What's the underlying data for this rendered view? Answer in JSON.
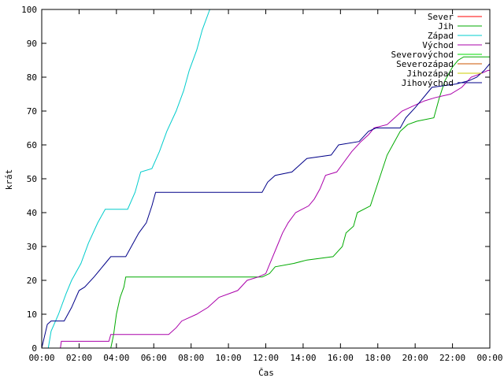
{
  "chart_data": {
    "type": "line",
    "title": "",
    "xlabel": "Čas",
    "ylabel": "krát",
    "xlim": [
      0,
      24
    ],
    "ylim": [
      0,
      100
    ],
    "grid": false,
    "legend_position": "top-right",
    "x_ticks": [
      {
        "value": 0,
        "label": "00:00"
      },
      {
        "value": 2,
        "label": "02:00"
      },
      {
        "value": 4,
        "label": "04:00"
      },
      {
        "value": 6,
        "label": "06:00"
      },
      {
        "value": 8,
        "label": "08:00"
      },
      {
        "value": 10,
        "label": "10:00"
      },
      {
        "value": 12,
        "label": "12:00"
      },
      {
        "value": 14,
        "label": "14:00"
      },
      {
        "value": 16,
        "label": "16:00"
      },
      {
        "value": 18,
        "label": "18:00"
      },
      {
        "value": 20,
        "label": "20:00"
      },
      {
        "value": 22,
        "label": "22:00"
      },
      {
        "value": 24,
        "label": "00:00"
      }
    ],
    "y_ticks": [
      0,
      10,
      20,
      30,
      40,
      50,
      60,
      70,
      80,
      90,
      100
    ],
    "series": [
      {
        "name": "Sever",
        "color": "#ff0000",
        "points": []
      },
      {
        "name": "Jih",
        "color": "#00aa00",
        "points": [
          [
            2.55,
            0
          ],
          [
            3.7,
            0
          ],
          [
            3.85,
            4
          ],
          [
            4.0,
            10
          ],
          [
            4.2,
            15
          ],
          [
            4.4,
            18
          ],
          [
            4.5,
            21
          ],
          [
            11.8,
            21
          ],
          [
            12.2,
            22
          ],
          [
            12.5,
            24
          ],
          [
            13.5,
            25
          ],
          [
            14.2,
            26
          ],
          [
            15.6,
            27
          ],
          [
            16.1,
            30
          ],
          [
            16.3,
            34
          ],
          [
            16.7,
            36
          ],
          [
            16.9,
            40
          ],
          [
            17.6,
            42
          ],
          [
            17.9,
            47
          ],
          [
            18.2,
            52
          ],
          [
            18.5,
            57
          ],
          [
            18.8,
            60
          ],
          [
            19.2,
            64
          ],
          [
            19.6,
            66
          ],
          [
            20.1,
            67
          ],
          [
            21.0,
            68
          ],
          [
            21.3,
            74
          ],
          [
            21.6,
            79
          ],
          [
            22.0,
            83
          ],
          [
            22.3,
            85
          ],
          [
            22.6,
            86
          ],
          [
            24.0,
            86
          ]
        ]
      },
      {
        "name": "Západ",
        "color": "#00cccc",
        "points": [
          [
            0.35,
            0
          ],
          [
            0.5,
            5
          ],
          [
            0.9,
            10
          ],
          [
            1.3,
            16
          ],
          [
            1.6,
            20
          ],
          [
            2.1,
            25
          ],
          [
            2.5,
            31
          ],
          [
            3.0,
            37
          ],
          [
            3.4,
            41
          ],
          [
            4.6,
            41
          ],
          [
            5.0,
            46
          ],
          [
            5.3,
            52
          ],
          [
            5.9,
            53
          ],
          [
            6.3,
            58
          ],
          [
            6.7,
            64
          ],
          [
            7.2,
            70
          ],
          [
            7.6,
            76
          ],
          [
            7.9,
            82
          ],
          [
            8.3,
            88
          ],
          [
            8.6,
            94
          ],
          [
            9.0,
            100
          ]
        ]
      },
      {
        "name": "Východ",
        "color": "#aa00aa",
        "points": [
          [
            1.0,
            0
          ],
          [
            1.05,
            2
          ],
          [
            3.6,
            2
          ],
          [
            3.7,
            4
          ],
          [
            6.8,
            4
          ],
          [
            7.2,
            6
          ],
          [
            7.5,
            8
          ],
          [
            8.3,
            10
          ],
          [
            8.9,
            12
          ],
          [
            9.5,
            15
          ],
          [
            10.5,
            17
          ],
          [
            11.0,
            20
          ],
          [
            11.6,
            21
          ],
          [
            12.0,
            22
          ],
          [
            12.3,
            26
          ],
          [
            12.6,
            30
          ],
          [
            12.9,
            34
          ],
          [
            13.2,
            37
          ],
          [
            13.6,
            40
          ],
          [
            14.3,
            42
          ],
          [
            14.6,
            44
          ],
          [
            14.9,
            47
          ],
          [
            15.2,
            51
          ],
          [
            15.8,
            52
          ],
          [
            16.2,
            55
          ],
          [
            16.6,
            58
          ],
          [
            17.1,
            61
          ],
          [
            17.5,
            63
          ],
          [
            17.8,
            65
          ],
          [
            18.5,
            66
          ],
          [
            18.9,
            68
          ],
          [
            19.3,
            70
          ],
          [
            19.7,
            71
          ],
          [
            20.5,
            73
          ],
          [
            21.1,
            74
          ],
          [
            21.9,
            75
          ],
          [
            22.5,
            77
          ],
          [
            23.0,
            80
          ],
          [
            23.5,
            81
          ],
          [
            23.9,
            82
          ],
          [
            24.0,
            82
          ]
        ]
      },
      {
        "name": "Severovýchod",
        "color": "#00dd00",
        "points": []
      },
      {
        "name": "Severozápad",
        "color": "#cc5500",
        "points": []
      },
      {
        "name": "Jihozápad",
        "color": "#cccc00",
        "points": []
      },
      {
        "name": "Jihovýchod",
        "color": "#000088",
        "points": [
          [
            0.0,
            0
          ],
          [
            0.3,
            7
          ],
          [
            0.5,
            8
          ],
          [
            1.2,
            8
          ],
          [
            1.6,
            12
          ],
          [
            2.0,
            17
          ],
          [
            2.3,
            18
          ],
          [
            2.8,
            21
          ],
          [
            3.4,
            25
          ],
          [
            3.7,
            27
          ],
          [
            4.5,
            27
          ],
          [
            4.8,
            30
          ],
          [
            5.2,
            34
          ],
          [
            5.6,
            37
          ],
          [
            5.9,
            42
          ],
          [
            6.1,
            46
          ],
          [
            11.8,
            46
          ],
          [
            12.1,
            49
          ],
          [
            12.5,
            51
          ],
          [
            13.4,
            52
          ],
          [
            14.2,
            56
          ],
          [
            15.5,
            57
          ],
          [
            15.9,
            60
          ],
          [
            17.0,
            61
          ],
          [
            17.5,
            64
          ],
          [
            17.9,
            65
          ],
          [
            19.2,
            65
          ],
          [
            19.5,
            68
          ],
          [
            20.0,
            71
          ],
          [
            20.6,
            75
          ],
          [
            20.9,
            77
          ],
          [
            22.2,
            78
          ],
          [
            22.9,
            79
          ],
          [
            23.3,
            80
          ],
          [
            23.7,
            82
          ],
          [
            24.0,
            84
          ]
        ]
      }
    ]
  }
}
